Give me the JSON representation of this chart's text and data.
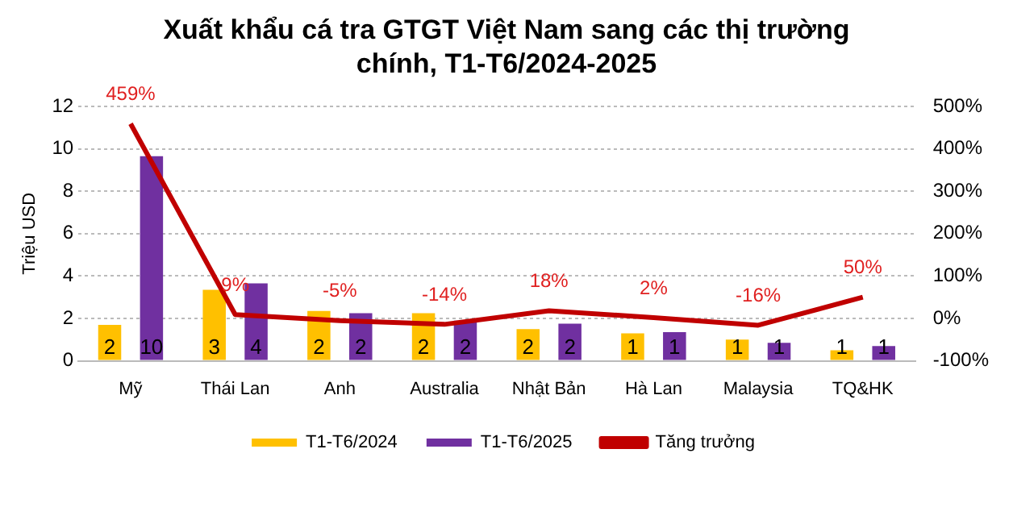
{
  "chart_data": {
    "type": "bar",
    "title": "Xuất khẩu cá tra GTGT Việt Nam sang các thị trường chính, T1-T6/2024-2025",
    "ylabel": "Triệu USD",
    "categories": [
      "Mỹ",
      "Thái Lan",
      "Anh",
      "Australia",
      "Nhật Bản",
      "Hà Lan",
      "Malaysia",
      "TQ&HK"
    ],
    "series": [
      {
        "name": "T1-T6/2024",
        "color": "#ffc000",
        "values": [
          1.7,
          3.35,
          2.35,
          2.25,
          1.5,
          1.3,
          1.0,
          0.5
        ],
        "value_labels": [
          "2",
          "3",
          "2",
          "2",
          "2",
          "1",
          "1",
          "1"
        ]
      },
      {
        "name": "T1-T6/2025",
        "color": "#7030a0",
        "values": [
          9.65,
          3.65,
          2.25,
          1.9,
          1.75,
          1.35,
          0.85,
          0.7
        ],
        "value_labels": [
          "10",
          "4",
          "2",
          "2",
          "2",
          "1",
          "1",
          "1"
        ]
      },
      {
        "name": "Tăng trưởng",
        "type": "line",
        "axis": "y2",
        "color": "#c00000",
        "values": [
          459,
          9,
          -5,
          -14,
          18,
          2,
          -16,
          50
        ],
        "value_labels": [
          "459%",
          "9%",
          "-5%",
          "-14%",
          "18%",
          "2%",
          "-16%",
          "50%"
        ]
      }
    ],
    "ylim": [
      0,
      12
    ],
    "yticks": [
      0,
      2,
      4,
      6,
      8,
      10,
      12
    ],
    "y2lim": [
      -100,
      500
    ],
    "y2ticks": [
      {
        "value": -100,
        "label": "-100%"
      },
      {
        "value": 0,
        "label": "0%"
      },
      {
        "value": 100,
        "label": "100%"
      },
      {
        "value": 200,
        "label": "200%"
      },
      {
        "value": 300,
        "label": "300%"
      },
      {
        "value": 400,
        "label": "400%"
      },
      {
        "value": 500,
        "label": "500%"
      }
    ],
    "grid": "y",
    "legend": "bottom",
    "marker": "none",
    "line_style": "solid"
  }
}
